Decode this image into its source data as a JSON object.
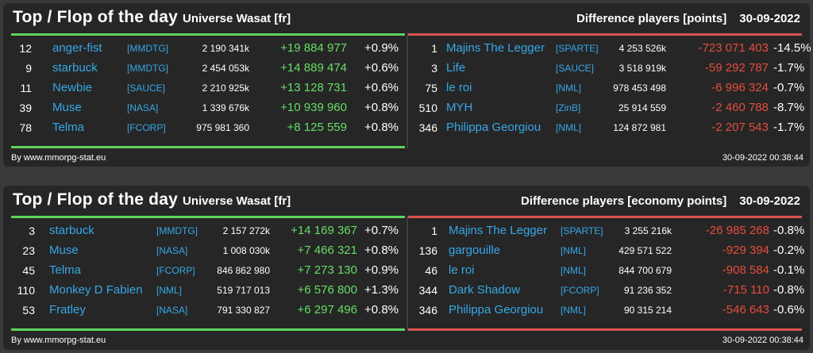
{
  "panels": [
    {
      "title": "Top / Flop of the day",
      "universe": "Universe Wasat [fr]",
      "difference_label": "Difference players [points]",
      "date": "30-09-2022",
      "footer_left": "By www.mmorpg-stat.eu",
      "footer_right": "30-09-2022 00:38:44",
      "colors": {
        "top": "#5fd35f",
        "flop": "#d9534f"
      },
      "top": [
        {
          "rank": "12",
          "name": "anger-fist",
          "alliance": "[MMDTG]",
          "points": "2 190 341k",
          "diff": "+19 884 977",
          "pct": "+0.9%"
        },
        {
          "rank": "9",
          "name": "starbuck",
          "alliance": "[MMDTG]",
          "points": "2 454 053k",
          "diff": "+14 889 474",
          "pct": "+0.6%"
        },
        {
          "rank": "11",
          "name": "Newbie",
          "alliance": "[SAUCE]",
          "points": "2 210 925k",
          "diff": "+13 128 731",
          "pct": "+0.6%"
        },
        {
          "rank": "39",
          "name": "Muse",
          "alliance": "[NASA]",
          "points": "1 339 676k",
          "diff": "+10 939 960",
          "pct": "+0.8%"
        },
        {
          "rank": "78",
          "name": "Telma",
          "alliance": "[FCORP]",
          "points": "975 981 360",
          "diff": "+8 125 559",
          "pct": "+0.8%"
        }
      ],
      "flop": [
        {
          "rank": "1",
          "name": "Majins The Legger",
          "alliance": "[SPARTE]",
          "points": "4 253 526k",
          "diff": "-723 071 403",
          "pct": "-14.5%"
        },
        {
          "rank": "3",
          "name": "Life",
          "alliance": "[SAUCE]",
          "points": "3 518 919k",
          "diff": "-59 292 787",
          "pct": "-1.7%"
        },
        {
          "rank": "75",
          "name": "le roi",
          "alliance": "[NML]",
          "points": "978 453 498",
          "diff": "-6 996 324",
          "pct": "-0.7%"
        },
        {
          "rank": "510",
          "name": "MYH",
          "alliance": "[ZinB]",
          "points": "25 914 559",
          "diff": "-2 460 788",
          "pct": "-8.7%"
        },
        {
          "rank": "346",
          "name": "Philippa Georgiou",
          "alliance": "[NML]",
          "points": "124 872 981",
          "diff": "-2 207 543",
          "pct": "-1.7%"
        }
      ]
    },
    {
      "title": "Top / Flop of the day",
      "universe": "Universe Wasat [fr]",
      "difference_label": "Difference players [economy points]",
      "date": "30-09-2022",
      "footer_left": "By www.mmorpg-stat.eu",
      "footer_right": "30-09-2022 00:38:44",
      "colors": {
        "top": "#5fd35f",
        "flop": "#d9534f"
      },
      "top": [
        {
          "rank": "3",
          "name": "starbuck",
          "alliance": "[MMDTG]",
          "points": "2 157 272k",
          "diff": "+14 169 367",
          "pct": "+0.7%"
        },
        {
          "rank": "23",
          "name": "Muse",
          "alliance": "[NASA]",
          "points": "1 008 030k",
          "diff": "+7 466 321",
          "pct": "+0.8%"
        },
        {
          "rank": "45",
          "name": "Telma",
          "alliance": "[FCORP]",
          "points": "846 862 980",
          "diff": "+7 273 130",
          "pct": "+0.9%"
        },
        {
          "rank": "110",
          "name": "Monkey D Fabien",
          "alliance": "[NML]",
          "points": "519 717 013",
          "diff": "+6 576 800",
          "pct": "+1.3%"
        },
        {
          "rank": "53",
          "name": "Fratley",
          "alliance": "[NASA]",
          "points": "791 330 827",
          "diff": "+6 297 496",
          "pct": "+0.8%"
        }
      ],
      "flop": [
        {
          "rank": "1",
          "name": "Majins The Legger",
          "alliance": "[SPARTE]",
          "points": "3 255 216k",
          "diff": "-26 985 268",
          "pct": "-0.8%"
        },
        {
          "rank": "136",
          "name": "gargouille",
          "alliance": "[NML]",
          "points": "429 571 522",
          "diff": "-929 394",
          "pct": "-0.2%"
        },
        {
          "rank": "46",
          "name": "le roi",
          "alliance": "[NML]",
          "points": "844 700 679",
          "diff": "-908 584",
          "pct": "-0.1%"
        },
        {
          "rank": "344",
          "name": "Dark Shadow",
          "alliance": "[FCORP]",
          "points": "91 236 352",
          "diff": "-715 110",
          "pct": "-0.8%"
        },
        {
          "rank": "346",
          "name": "Philippa Georgiou",
          "alliance": "[NML]",
          "points": "90 315 214",
          "diff": "-546 643",
          "pct": "-0.6%"
        }
      ]
    }
  ]
}
